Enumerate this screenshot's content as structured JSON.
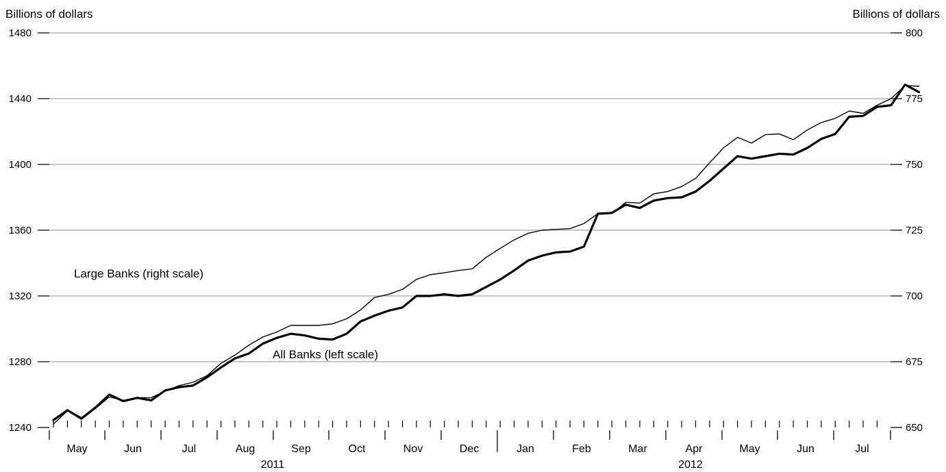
{
  "chart_data": {
    "type": "line",
    "left_axis_label": "Billions of dollars",
    "right_axis_label": "Billions of dollars",
    "left_ylim": [
      1240,
      1480
    ],
    "right_ylim": [
      650,
      800
    ],
    "left_ticks": [
      "1240",
      "1280",
      "1320",
      "1360",
      "1400",
      "1440",
      "1480"
    ],
    "right_ticks": [
      "650",
      "675",
      "700",
      "725",
      "750",
      "775",
      "800"
    ],
    "months": [
      "May",
      "Jun",
      "Jul",
      "Aug",
      "Sep",
      "Oct",
      "Nov",
      "Dec",
      "Jan",
      "Feb",
      "Mar",
      "Apr",
      "May",
      "Jun",
      "Jul"
    ],
    "years": [
      "2011",
      "2012"
    ],
    "grid": true,
    "series": [
      {
        "name": "All Banks (left scale)",
        "axis": "left",
        "values": [
          1244.5,
          1250.5,
          1245.5,
          1252,
          1260,
          1256,
          1258,
          1256.5,
          1262.5,
          1264.5,
          1265.5,
          1270.5,
          1276.5,
          1282,
          1285,
          1291,
          1294.5,
          1297,
          1296,
          1294,
          1293.5,
          1297,
          1304.5,
          1308,
          1311,
          1313,
          1320,
          1320,
          1321,
          1320,
          1321,
          1325.5,
          1330,
          1335.5,
          1341.5,
          1344.5,
          1346.5,
          1347,
          1350,
          1370,
          1370.5,
          1375.5,
          1373.5,
          1378,
          1379.5,
          1380,
          1383.5,
          1390,
          1397.5,
          1405,
          1403.5,
          1405,
          1406.5,
          1406,
          1410,
          1415.5,
          1418.5,
          1429,
          1429.5,
          1435,
          1436,
          1448.5,
          1444
        ]
      },
      {
        "name": "Large Banks (right scale)",
        "axis": "right",
        "values": [
          651.3,
          656.3,
          653.1,
          657.2,
          661.6,
          660.3,
          661.3,
          661.3,
          663.8,
          665.9,
          667.2,
          669.7,
          674.4,
          677.5,
          681.3,
          684.4,
          686.3,
          688.8,
          688.8,
          688.8,
          689.4,
          691.3,
          694.7,
          699.4,
          700.6,
          702.5,
          706.3,
          708.1,
          708.8,
          709.7,
          710.3,
          714.7,
          718.1,
          721.3,
          723.8,
          725.0,
          725.3,
          725.6,
          727.5,
          731.3,
          731.3,
          735.6,
          735.3,
          738.8,
          739.7,
          741.6,
          744.7,
          750.6,
          756.3,
          760.3,
          758.1,
          761.3,
          761.6,
          759.4,
          763.1,
          765.9,
          767.5,
          770.3,
          769.4,
          772.5,
          775.0,
          780.0,
          779.7
        ]
      }
    ],
    "annotations": [
      {
        "text": "Large Banks (right scale)"
      },
      {
        "text": "All Banks (left scale)"
      }
    ]
  }
}
